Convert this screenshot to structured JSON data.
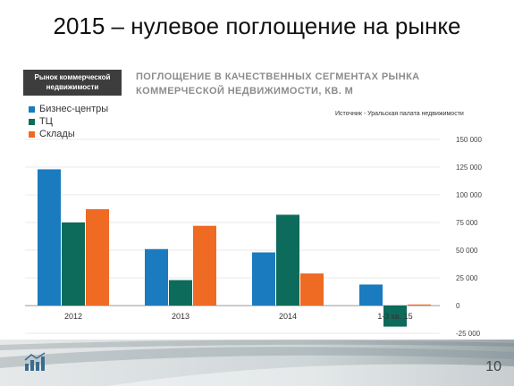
{
  "slide": {
    "title": "2015 – нулевое поглощение на рынке",
    "tag": "Рынок коммерческой недвижимости",
    "page_number": "10"
  },
  "chart_data": {
    "type": "bar",
    "title": "ПОГЛОЩЕНИЕ В КАЧЕСТВЕННЫХ СЕГМЕНТАХ РЫНКА КОММЕРЧЕСКОЙ НЕДВИЖИМОСТИ, КВ. М",
    "source": "Источник - Уральская палата недвижимости",
    "categories": [
      "2012",
      "2013",
      "2014",
      "1-3 кв. 15"
    ],
    "series": [
      {
        "name": "Бизнес-центры",
        "color": "#1a7bbf",
        "values": [
          123000,
          51000,
          48000,
          19000
        ]
      },
      {
        "name": "ТЦ",
        "color": "#0c6b5a",
        "values": [
          75000,
          23000,
          82000,
          -19000
        ]
      },
      {
        "name": "Склады",
        "color": "#ef6a23",
        "values": [
          87000,
          72000,
          29000,
          1000
        ]
      }
    ],
    "ylim": [
      -25000,
      150000
    ],
    "yticks": [
      "150 000",
      "125 000",
      "100 000",
      "75 000",
      "50 000",
      "25 000",
      "0",
      "-25 000"
    ],
    "ytick_values": [
      150000,
      125000,
      100000,
      75000,
      50000,
      25000,
      0,
      -25000
    ],
    "legend_position": "top-left",
    "y_axis_position": "right",
    "grid": true
  }
}
